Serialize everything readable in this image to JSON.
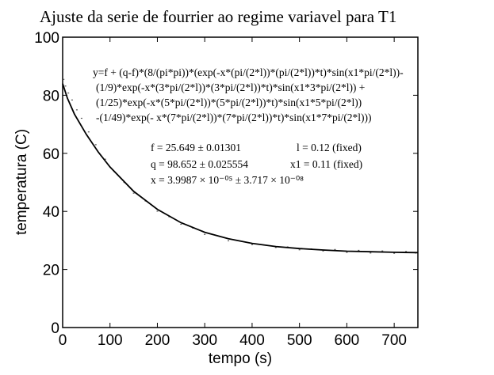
{
  "chart_data": {
    "type": "scatter",
    "title": "Ajuste da serie de fourrier ao regime variavel para T1",
    "xlabel": "tempo (s)",
    "ylabel": "temperatura (C)",
    "xlim": [
      0,
      750
    ],
    "ylim": [
      0,
      100
    ],
    "x_ticks": [
      0,
      100,
      200,
      300,
      400,
      500,
      600,
      700
    ],
    "y_ticks": [
      0,
      20,
      40,
      60,
      80,
      100
    ],
    "grid": false,
    "legend": "none",
    "equation_lines": [
      "y=f  + (q-f)*(8/(pi*pi))*(exp(-x*(pi/(2*l))*(pi/(2*l))*t)*sin(x1*pi/(2*l))-",
      "(1/9)*exp(-x*(3*pi/(2*l))*(3*pi/(2*l))*t)*sin(x1*3*pi/(2*l))  +",
      "(1/25)*exp(-x*(5*pi/(2*l))*(5*pi/(2*l))*t)*sin(x1*5*pi/(2*l))",
      "-(1/49)*exp(- x*(7*pi/(2*l))*(7*pi/(2*l))*t)*sin(x1*7*pi/(2*l)))"
    ],
    "fit_parameters": [
      "f = 25.649 ± 0.01301",
      "q = 98.652 ± 0.025554",
      "x = 3.9987 × 10⁻⁰⁵ ± 3.717 × 10⁻⁰⁸",
      "l = 0.12 (fixed)",
      "x1 = 0.11 (fixed)"
    ],
    "series": [
      {
        "kind": "fit_curve",
        "x": [
          0,
          10,
          25,
          50,
          75,
          100,
          150,
          200,
          250,
          300,
          350,
          400,
          450,
          500,
          550,
          600,
          650,
          700,
          750
        ],
        "y": [
          84,
          79,
          73.5,
          66.5,
          60.5,
          55.3,
          46.9,
          40.7,
          36.1,
          32.8,
          30.6,
          29.0,
          27.9,
          27.2,
          26.7,
          26.3,
          26.1,
          25.9,
          25.8
        ]
      },
      {
        "kind": "data_points",
        "x": [
          2,
          6,
          12,
          20,
          30,
          40,
          55,
          70,
          90,
          110,
          130,
          150,
          175,
          200,
          225,
          250,
          275,
          300,
          325,
          350,
          375,
          400,
          425,
          450,
          475,
          500,
          525,
          550,
          575,
          600,
          625,
          650,
          675,
          700,
          725,
          745
        ],
        "y": [
          85.5,
          83.2,
          80.8,
          78.4,
          75.0,
          72.1,
          67.4,
          63.0,
          58.0,
          53.6,
          50.0,
          46.3,
          43.6,
          40.1,
          38.2,
          35.6,
          34.3,
          32.1,
          31.7,
          29.9,
          29.8,
          28.6,
          28.4,
          27.6,
          27.8,
          26.8,
          27.1,
          26.4,
          26.9,
          25.9,
          26.6,
          25.7,
          26.4,
          25.6,
          26.2,
          25.7
        ]
      }
    ]
  }
}
